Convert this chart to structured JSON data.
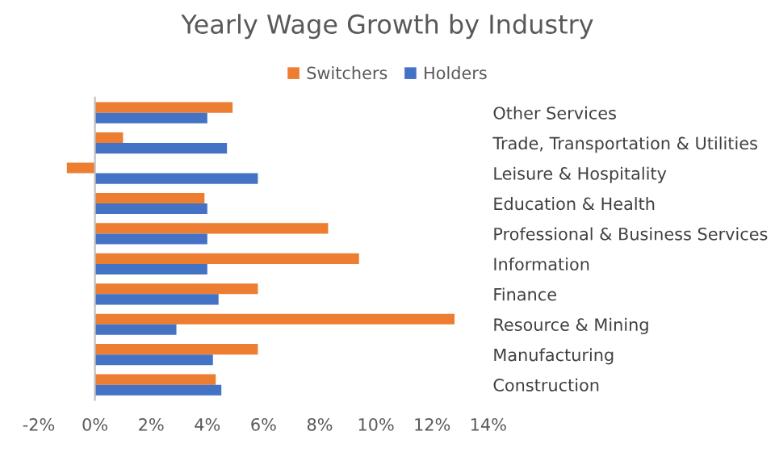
{
  "chart_data": {
    "type": "bar",
    "orientation": "horizontal",
    "title": "Yearly Wage Growth by Industry",
    "categories": [
      "Other Services",
      "Trade, Transportation & Utilities",
      "Leisure & Hospitality",
      "Education & Health",
      "Professional & Business Services",
      "Information",
      "Finance",
      "Resource & Mining",
      "Manufacturing",
      "Construction"
    ],
    "series": [
      {
        "name": "Switchers",
        "color": "#ed7d31",
        "values": [
          4.9,
          1.0,
          -1.0,
          3.9,
          8.3,
          9.4,
          5.8,
          12.8,
          5.8,
          4.3
        ]
      },
      {
        "name": "Holders",
        "color": "#4472c4",
        "values": [
          4.0,
          4.7,
          5.8,
          4.0,
          4.0,
          4.0,
          4.4,
          2.9,
          4.2,
          4.5
        ]
      }
    ],
    "xlim": [
      -2,
      14
    ],
    "xticks": [
      {
        "value": -2,
        "label": "-2%"
      },
      {
        "value": 0,
        "label": "0%"
      },
      {
        "value": 2,
        "label": "2%"
      },
      {
        "value": 4,
        "label": "4%"
      },
      {
        "value": 6,
        "label": "6%"
      },
      {
        "value": 8,
        "label": "8%"
      },
      {
        "value": 10,
        "label": "10%"
      },
      {
        "value": 12,
        "label": "12%"
      },
      {
        "value": 14,
        "label": "14%"
      }
    ],
    "legend": "top"
  }
}
